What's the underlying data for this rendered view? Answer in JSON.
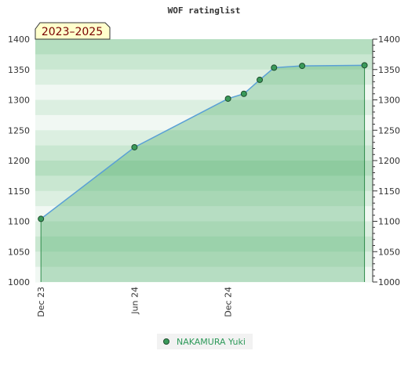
{
  "chart_data": {
    "type": "area",
    "title": "WOF ratinglist",
    "period_label": "2023–2025",
    "xlabel": "",
    "ylabel": "",
    "x_ticks": [
      {
        "label": "Dec 23",
        "date": "2023-12-01"
      },
      {
        "label": "Jun 24",
        "date": "2024-06-01"
      },
      {
        "label": "Dec 24",
        "date": "2024-12-01"
      }
    ],
    "xlim": [
      "2023-11-20",
      "2025-09-10"
    ],
    "ylim": [
      1000,
      1400
    ],
    "y_ticks": [
      1000,
      1050,
      1100,
      1150,
      1200,
      1250,
      1300,
      1350,
      1400
    ],
    "legend_position": "bottom-center",
    "series": [
      {
        "name": "NAKAMURA Yuki",
        "color": "#5aa0d6",
        "marker_color": "#3a9a5a",
        "points": [
          {
            "date": "2023-12-01",
            "value": 1104
          },
          {
            "date": "2024-06-01",
            "value": 1222
          },
          {
            "date": "2024-12-01",
            "value": 1302
          },
          {
            "date": "2025-01-01",
            "value": 1310
          },
          {
            "date": "2025-02-01",
            "value": 1333
          },
          {
            "date": "2025-03-01",
            "value": 1353
          },
          {
            "date": "2025-04-25",
            "value": 1356
          },
          {
            "date": "2025-08-25",
            "value": 1357
          }
        ]
      }
    ]
  }
}
